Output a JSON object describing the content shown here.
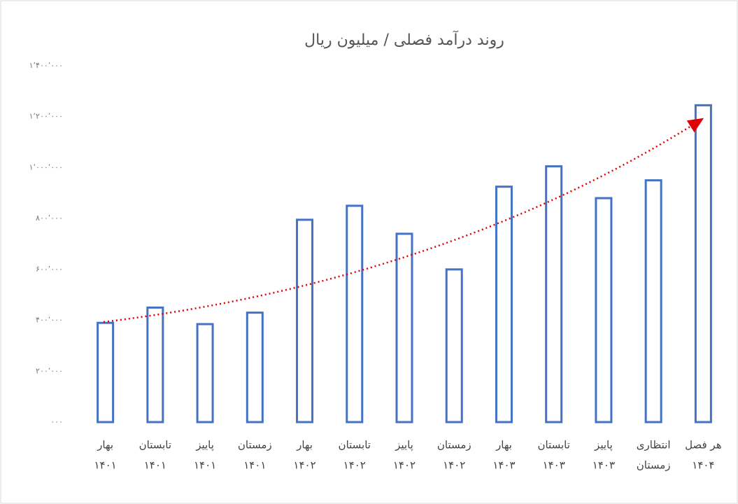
{
  "chart_data": {
    "type": "bar",
    "title": "روند درآمد فصلی / میلیون ریال",
    "categories": [
      [
        "بهار",
        "۱۴۰۱"
      ],
      [
        "تابستان",
        "۱۴۰۱"
      ],
      [
        "پاییز",
        "۱۴۰۱"
      ],
      [
        "زمستان",
        "۱۴۰۱"
      ],
      [
        "بهار",
        "۱۴۰۲"
      ],
      [
        "تابستان",
        "۱۴۰۲"
      ],
      [
        "پاییز",
        "۱۴۰۲"
      ],
      [
        "زمستان",
        "۱۴۰۲"
      ],
      [
        "بهار",
        "۱۴۰۳"
      ],
      [
        "تابستان",
        "۱۴۰۳"
      ],
      [
        "پاییز",
        "۱۴۰۳"
      ],
      [
        "انتظاری",
        "زمستان"
      ],
      [
        "هر فصل",
        "۱۴۰۴"
      ]
    ],
    "values": [
      390000,
      450000,
      385000,
      430000,
      795000,
      850000,
      740000,
      600000,
      925000,
      1005000,
      880000,
      950000,
      1245000
    ],
    "color": "#4472c4",
    "ylim": [
      0,
      1400000
    ],
    "yticks": [
      {
        "value": 0,
        "label": "۰۰۰"
      },
      {
        "value": 200000,
        "label": "۲۰۰٬۰۰۰"
      },
      {
        "value": 400000,
        "label": "۴۰۰٬۰۰۰"
      },
      {
        "value": 600000,
        "label": "۶۰۰٬۰۰۰"
      },
      {
        "value": 800000,
        "label": "۸۰۰٬۰۰۰"
      },
      {
        "value": 1000000,
        "label": "۱٬۰۰۰٬۰۰۰"
      },
      {
        "value": 1200000,
        "label": "۱٬۲۰۰٬۰۰۰"
      },
      {
        "value": 1400000,
        "label": "۱٬۴۰۰٬۰۰۰"
      }
    ],
    "grid": false
  }
}
